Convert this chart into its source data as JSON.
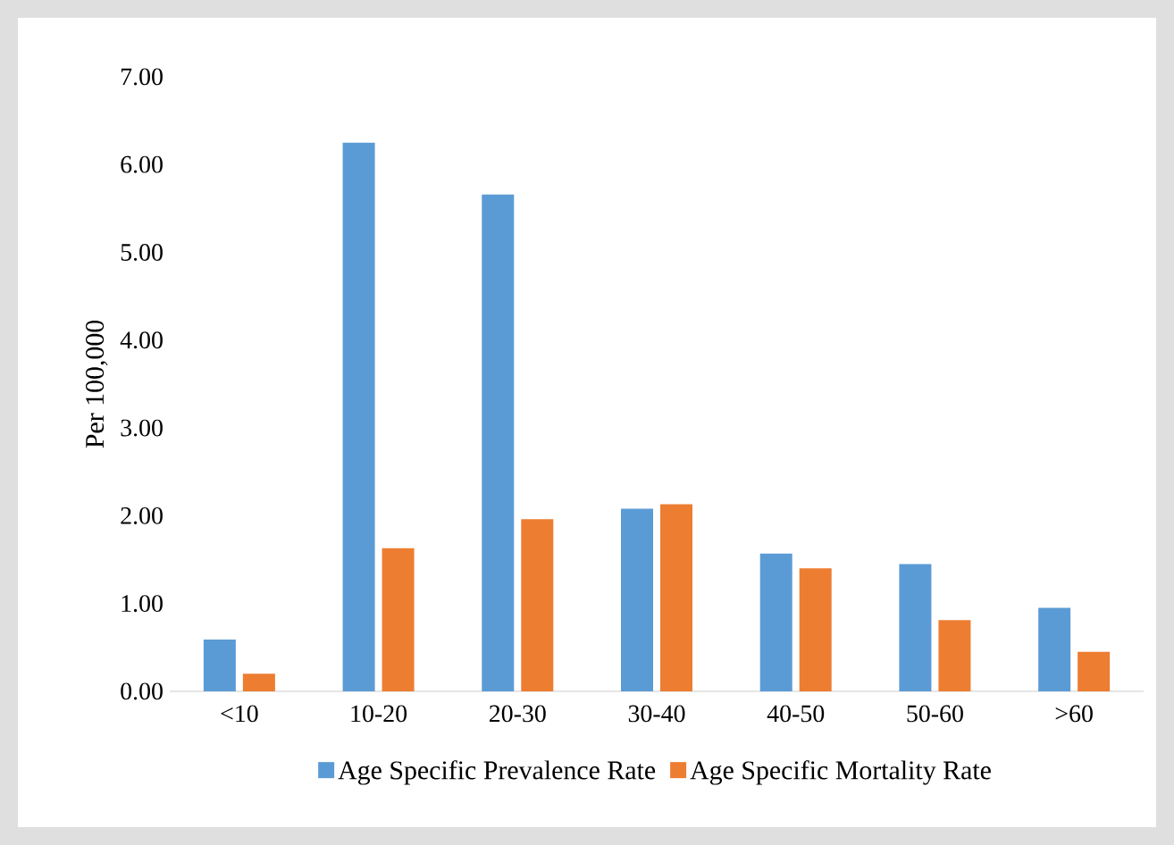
{
  "chart_data": {
    "type": "bar",
    "ylabel": "Per 100,000",
    "categories": [
      "<10",
      "10-20",
      "20-30",
      "30-40",
      "40-50",
      "50-60",
      ">60"
    ],
    "series": [
      {
        "name": "Age Specific Prevalence Rate",
        "color": "#5b9bd5",
        "values": [
          0.59,
          6.25,
          5.66,
          2.08,
          1.57,
          1.45,
          0.95
        ]
      },
      {
        "name": "Age Specific Mortality Rate",
        "color": "#ed7d31",
        "values": [
          0.2,
          1.63,
          1.96,
          2.13,
          1.4,
          0.81,
          0.45
        ]
      }
    ],
    "ylim": [
      0,
      7
    ],
    "yticks": [
      {
        "value": 0,
        "label": "0.00"
      },
      {
        "value": 1,
        "label": "1.00"
      },
      {
        "value": 2,
        "label": "2.00"
      },
      {
        "value": 3,
        "label": "3.00"
      },
      {
        "value": 4,
        "label": "4.00"
      },
      {
        "value": 5,
        "label": "5.00"
      },
      {
        "value": 6,
        "label": "6.00"
      },
      {
        "value": 7,
        "label": "7.00"
      }
    ],
    "grid": false,
    "legend": "bottom"
  }
}
